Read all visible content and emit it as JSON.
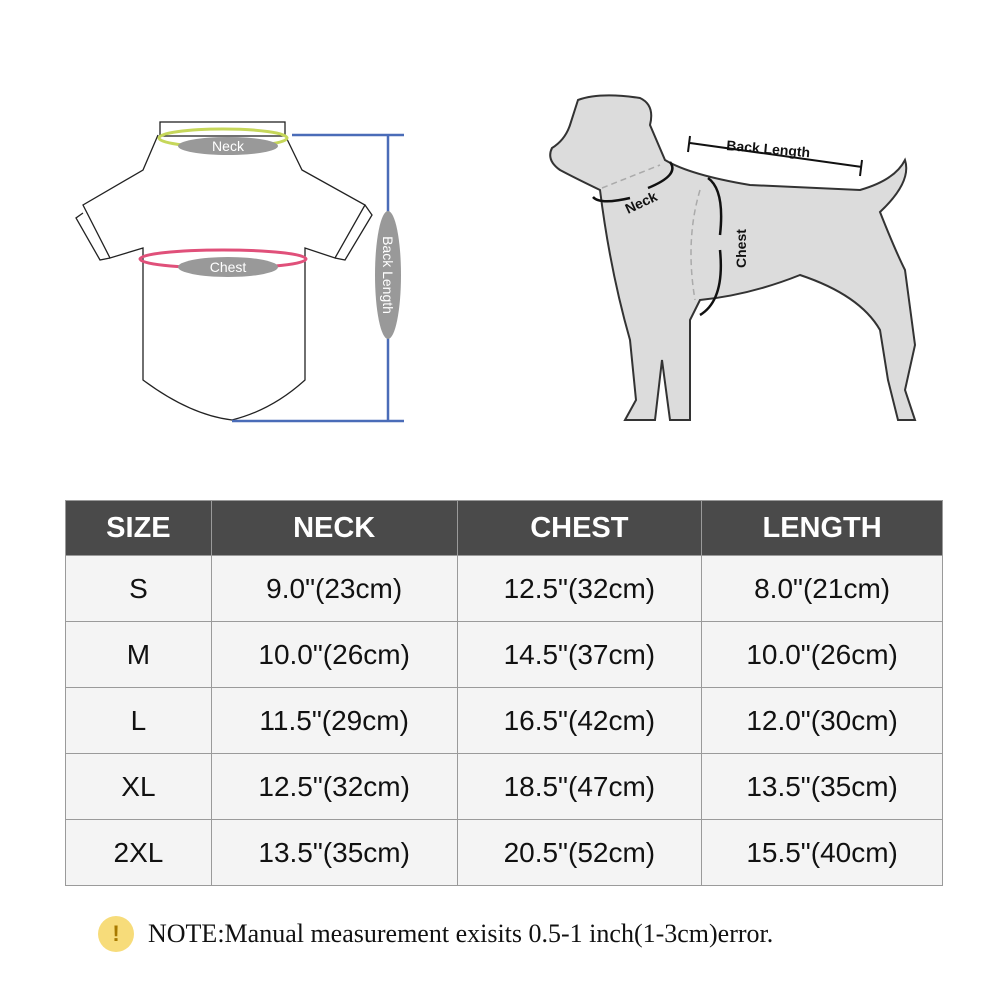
{
  "shirt_diagram": {
    "neck_label": "Neck",
    "chest_label": "Chest",
    "length_label": "Back Length",
    "neck_color": "#c6d75a",
    "chest_color": "#e0507a",
    "length_color": "#4a6cb8"
  },
  "dog_diagram": {
    "back_length_label": "Back Length",
    "neck_label": "Neck",
    "chest_label": "Chest"
  },
  "size_table": {
    "headers": [
      "SIZE",
      "NECK",
      "CHEST",
      "LENGTH"
    ],
    "rows": [
      [
        "S",
        "9.0\"(23cm)",
        "12.5\"(32cm)",
        "8.0\"(21cm)"
      ],
      [
        "M",
        "10.0\"(26cm)",
        "14.5\"(37cm)",
        "10.0\"(26cm)"
      ],
      [
        "L",
        "11.5\"(29cm)",
        "16.5\"(42cm)",
        "12.0\"(30cm)"
      ],
      [
        "XL",
        "12.5\"(32cm)",
        "18.5\"(47cm)",
        "13.5\"(35cm)"
      ],
      [
        "2XL",
        "13.5\"(35cm)",
        "20.5\"(52cm)",
        "15.5\"(40cm)"
      ]
    ]
  },
  "note": {
    "icon": "exclamation-icon",
    "text": "NOTE:Manual measurement exisits 0.5-1 inch(1-3cm)error."
  }
}
